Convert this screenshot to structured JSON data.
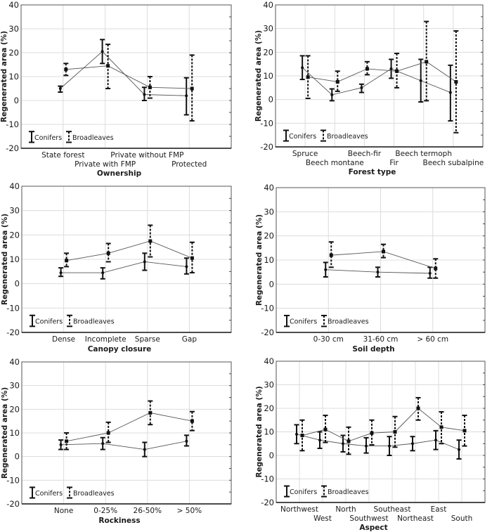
{
  "figure": {
    "legend_labels": {
      "conifers": "Conifers",
      "broadleaves": "Broadleaves"
    },
    "y_axis_title": "Regenerated area (%)"
  },
  "chart_data": [
    {
      "id": "ownership",
      "type": "line",
      "subtype": "error-bar",
      "xlabel": "Ownership",
      "ylabel": "Regenerated area (%)",
      "ylim": [
        -20,
        40
      ],
      "yticks": [
        -20,
        -10,
        0,
        10,
        20,
        30,
        40
      ],
      "grid": true,
      "legend": "bottom-left",
      "categories": [
        "State forest",
        "Private with FMP",
        "Private without FMP",
        "Protected"
      ],
      "series": [
        {
          "name": "Conifers",
          "style": "solid",
          "values": [
            5,
            20.5,
            2.5,
            2
          ],
          "lower": [
            3.5,
            15.5,
            0,
            -6
          ],
          "upper": [
            6,
            25.5,
            5.5,
            9.5
          ]
        },
        {
          "name": "Broadleaves",
          "style": "dashed",
          "values": [
            13,
            14.5,
            5.5,
            5
          ],
          "lower": [
            10.5,
            5,
            1,
            -8.5
          ],
          "upper": [
            15.5,
            23.5,
            10,
            19
          ]
        }
      ]
    },
    {
      "id": "forest-type",
      "type": "line",
      "subtype": "error-bar",
      "xlabel": "Forest type",
      "ylabel": "Regenerated area (%)",
      "ylim": [
        -20,
        40
      ],
      "yticks": [
        -20,
        -10,
        0,
        10,
        20,
        30,
        40
      ],
      "grid": true,
      "legend": "bottom-left",
      "categories": [
        "Spruce",
        "Beech montane",
        "Beech-fir",
        "Fir",
        "Beech termoph",
        "Beech subalpine"
      ],
      "series": [
        {
          "name": "Conifers",
          "style": "solid",
          "values": [
            13.5,
            2,
            5,
            13,
            8,
            3
          ],
          "lower": [
            8.5,
            -0.5,
            3,
            9,
            -1,
            -9
          ],
          "upper": [
            18.5,
            4.5,
            6.5,
            17,
            17,
            14.5
          ]
        },
        {
          "name": "Broadleaves",
          "style": "dashed",
          "values": [
            9.5,
            7.5,
            13,
            12,
            16,
            7.5
          ],
          "lower": [
            0.5,
            3.5,
            10.5,
            5,
            -0.5,
            -14
          ],
          "upper": [
            18.5,
            12,
            16,
            19.5,
            33,
            29
          ]
        }
      ]
    },
    {
      "id": "canopy-closure",
      "type": "line",
      "subtype": "error-bar",
      "xlabel": "Canopy closure",
      "ylabel": "Regenerated area (%)",
      "ylim": [
        -20,
        40
      ],
      "yticks": [
        -20,
        -10,
        0,
        10,
        20,
        30,
        40
      ],
      "grid": true,
      "legend": "bottom-left",
      "categories": [
        "Dense",
        "Incomplete",
        "Sparse",
        "Gap"
      ],
      "series": [
        {
          "name": "Conifers",
          "style": "solid",
          "values": [
            4.5,
            4.5,
            9,
            7
          ],
          "lower": [
            3,
            2,
            5.5,
            4
          ],
          "upper": [
            6.5,
            6.5,
            12.5,
            10.5
          ]
        },
        {
          "name": "Broadleaves",
          "style": "dashed",
          "values": [
            9.5,
            12.5,
            17.5,
            10.5
          ],
          "lower": [
            7,
            9,
            11,
            4.5
          ],
          "upper": [
            12.5,
            16.5,
            24,
            17
          ]
        }
      ]
    },
    {
      "id": "soil-depth",
      "type": "line",
      "subtype": "error-bar",
      "xlabel": "Soil depth",
      "ylabel": "Regenerated area (%)",
      "ylim": [
        -20,
        40
      ],
      "yticks": [
        -20,
        -10,
        0,
        10,
        20,
        30,
        40
      ],
      "grid": true,
      "legend": "bottom-left",
      "categories": [
        "0-30 cm",
        "31-60 cm",
        "> 60 cm"
      ],
      "series": [
        {
          "name": "Conifers",
          "style": "solid",
          "values": [
            6,
            5,
            4.5
          ],
          "lower": [
            3,
            3,
            2.5
          ],
          "upper": [
            9,
            7,
            7
          ]
        },
        {
          "name": "Broadleaves",
          "style": "dashed",
          "values": [
            12,
            13.5,
            6.5
          ],
          "lower": [
            7,
            11,
            2.5
          ],
          "upper": [
            17.5,
            16.5,
            10.5
          ]
        }
      ]
    },
    {
      "id": "rockiness",
      "type": "line",
      "subtype": "error-bar",
      "xlabel": "Rockiness",
      "ylabel": "Regenerated area (%)",
      "ylim": [
        -20,
        40
      ],
      "yticks": [
        -20,
        -10,
        0,
        10,
        20,
        30,
        40
      ],
      "grid": true,
      "legend": "bottom-left",
      "categories": [
        "None",
        "0-25%",
        "26-50%",
        "> 50%"
      ],
      "series": [
        {
          "name": "Conifers",
          "style": "solid",
          "values": [
            5,
            5.5,
            3,
            6.5
          ],
          "lower": [
            3,
            3,
            0,
            4.5
          ],
          "upper": [
            7,
            8,
            6,
            9
          ]
        },
        {
          "name": "Broadleaves",
          "style": "dashed",
          "values": [
            6.5,
            10,
            18.5,
            15
          ],
          "lower": [
            3,
            6,
            13.5,
            11
          ],
          "upper": [
            10,
            14.5,
            23.5,
            19
          ]
        }
      ]
    },
    {
      "id": "aspect",
      "type": "line",
      "subtype": "error-bar",
      "xlabel": "Aspect",
      "ylabel": "Regenerated area (%)",
      "ylim": [
        -20,
        40
      ],
      "yticks": [
        -20,
        -10,
        0,
        10,
        20,
        30,
        40
      ],
      "grid": true,
      "legend": "bottom-left",
      "categories": [
        "Northwest",
        "West",
        "North",
        "Southwest",
        "Southeast",
        "Northeast",
        "East",
        "South"
      ],
      "series": [
        {
          "name": "Conifers",
          "style": "solid",
          "values": [
            9,
            6.5,
            5,
            4,
            4,
            5,
            6.5,
            2.5
          ],
          "lower": [
            5,
            3,
            1.5,
            1,
            0,
            2,
            2.5,
            -1.5
          ],
          "upper": [
            13,
            10,
            8.5,
            7.5,
            8,
            8,
            10.5,
            6.5
          ]
        },
        {
          "name": "Broadleaves",
          "style": "dashed",
          "values": [
            8.5,
            11,
            6,
            9.5,
            10,
            20,
            12,
            10.5
          ],
          "lower": [
            2,
            5.5,
            0.5,
            4.5,
            3.5,
            15,
            5,
            4
          ],
          "upper": [
            15,
            17,
            12,
            15,
            16.5,
            24.5,
            18.5,
            17
          ]
        }
      ]
    }
  ]
}
